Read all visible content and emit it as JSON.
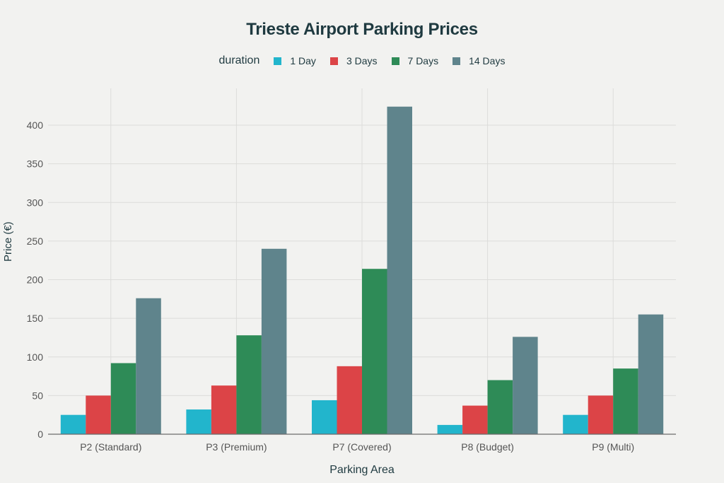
{
  "chart_data": {
    "type": "bar",
    "title": "Trieste Airport Parking Prices",
    "xlabel": "Parking Area",
    "ylabel": "Price (€)",
    "ylim": [
      0,
      440
    ],
    "yticks": [
      0,
      50,
      100,
      150,
      200,
      250,
      300,
      350,
      400
    ],
    "grid": true,
    "legend_position": "top",
    "legend_title": "duration",
    "categories": [
      "P2 (Standard)",
      "P3 (Premium)",
      "P7 (Covered)",
      "P8 (Budget)",
      "P9 (Multi)"
    ],
    "series": [
      {
        "name": "1 Day",
        "color": "#22b5cc",
        "values": [
          25,
          32,
          44,
          12,
          25
        ]
      },
      {
        "name": "3 Days",
        "color": "#dc4447",
        "values": [
          50,
          63,
          88,
          37,
          50
        ]
      },
      {
        "name": "7 Days",
        "color": "#2e8b57",
        "values": [
          92,
          128,
          214,
          70,
          85
        ]
      },
      {
        "name": "14 Days",
        "color": "#5f848c",
        "values": [
          176,
          240,
          424,
          126,
          155
        ]
      }
    ]
  }
}
